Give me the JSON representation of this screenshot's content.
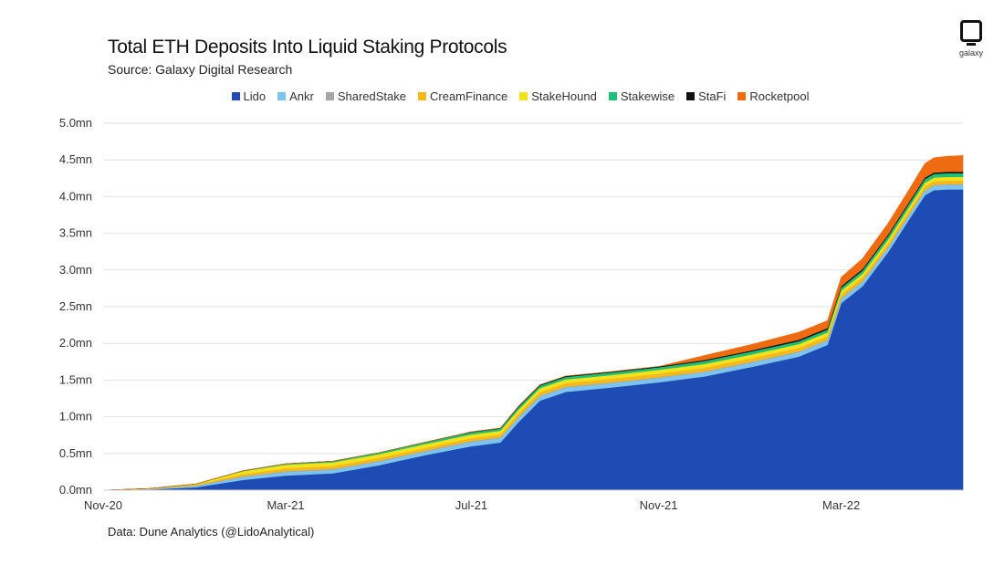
{
  "header": {
    "title": "Total ETH Deposits Into Liquid Staking Protocols",
    "subtitle": "Source: Galaxy Digital Research"
  },
  "logo": {
    "text": "galaxy",
    "icon": "galaxy-logo-icon"
  },
  "footnote": "Data: Dune Analytics (@LidoAnalytical)",
  "chart_data": {
    "type": "area",
    "stacked": true,
    "title": "Total ETH Deposits Into Liquid Staking Protocols",
    "subtitle": "Source: Galaxy Digital Research",
    "xlabel": "",
    "ylabel": "",
    "ylim": [
      0,
      5.0
    ],
    "y_unit": "mn",
    "yticks": [
      "0.0mn",
      "0.5mn",
      "1.0mn",
      "1.5mn",
      "2.0mn",
      "2.5mn",
      "3.0mn",
      "3.5mn",
      "4.0mn",
      "4.5mn",
      "5.0mn"
    ],
    "xticks": [
      "Nov-20",
      "Mar-21",
      "Jul-21",
      "Nov-21",
      "Mar-22"
    ],
    "grid": "horizontal",
    "legend_position": "top",
    "x": [
      "2020-11-01",
      "2020-12-01",
      "2021-01-01",
      "2021-02-01",
      "2021-03-01",
      "2021-04-01",
      "2021-05-01",
      "2021-06-01",
      "2021-07-01",
      "2021-07-20",
      "2021-08-01",
      "2021-08-15",
      "2021-09-01",
      "2021-10-01",
      "2021-11-01",
      "2021-12-01",
      "2022-01-01",
      "2022-02-01",
      "2022-02-20",
      "2022-03-01",
      "2022-03-15",
      "2022-04-01",
      "2022-04-15",
      "2022-04-25",
      "2022-05-01",
      "2022-05-10",
      "2022-05-20"
    ],
    "series": [
      {
        "name": "Lido",
        "color": "#1f4bb4",
        "values": [
          0.0,
          0.01,
          0.04,
          0.14,
          0.2,
          0.23,
          0.34,
          0.48,
          0.6,
          0.65,
          0.93,
          1.22,
          1.34,
          1.4,
          1.47,
          1.55,
          1.68,
          1.82,
          1.98,
          2.55,
          2.78,
          3.25,
          3.7,
          4.02,
          4.09,
          4.1,
          4.1
        ]
      },
      {
        "name": "Ankr",
        "color": "#7cc4ee",
        "values": [
          0.0,
          0.005,
          0.02,
          0.04,
          0.05,
          0.05,
          0.05,
          0.05,
          0.06,
          0.06,
          0.06,
          0.06,
          0.06,
          0.06,
          0.06,
          0.06,
          0.06,
          0.06,
          0.06,
          0.06,
          0.06,
          0.06,
          0.06,
          0.06,
          0.06,
          0.06,
          0.06
        ]
      },
      {
        "name": "SharedStake",
        "color": "#a6a6a6",
        "values": [
          0.0,
          0.002,
          0.005,
          0.01,
          0.01,
          0.01,
          0.01,
          0.01,
          0.01,
          0.01,
          0.01,
          0.01,
          0.01,
          0.01,
          0.01,
          0.01,
          0.01,
          0.01,
          0.01,
          0.01,
          0.01,
          0.01,
          0.01,
          0.01,
          0.01,
          0.01,
          0.01
        ]
      },
      {
        "name": "CreamFinance",
        "color": "#f5b91e",
        "values": [
          0.0,
          0.003,
          0.01,
          0.03,
          0.04,
          0.04,
          0.04,
          0.04,
          0.04,
          0.04,
          0.05,
          0.05,
          0.05,
          0.05,
          0.05,
          0.05,
          0.05,
          0.05,
          0.05,
          0.05,
          0.05,
          0.05,
          0.05,
          0.05,
          0.05,
          0.05,
          0.05
        ]
      },
      {
        "name": "StakeHound",
        "color": "#f2e21c",
        "values": [
          0.0,
          0.003,
          0.01,
          0.04,
          0.05,
          0.05,
          0.05,
          0.05,
          0.05,
          0.05,
          0.05,
          0.05,
          0.05,
          0.05,
          0.05,
          0.05,
          0.05,
          0.05,
          0.05,
          0.05,
          0.05,
          0.05,
          0.05,
          0.05,
          0.05,
          0.05,
          0.05
        ]
      },
      {
        "name": "Stakewise",
        "color": "#1fbf7a",
        "values": [
          0.0,
          0.0,
          0.0,
          0.005,
          0.01,
          0.015,
          0.02,
          0.025,
          0.03,
          0.03,
          0.035,
          0.035,
          0.035,
          0.035,
          0.035,
          0.04,
          0.04,
          0.04,
          0.04,
          0.04,
          0.045,
          0.05,
          0.05,
          0.05,
          0.05,
          0.05,
          0.05
        ]
      },
      {
        "name": "StaFi",
        "color": "#111111",
        "values": [
          0.0,
          0.0,
          0.0,
          0.0,
          0.0,
          0.0,
          0.0,
          0.0,
          0.005,
          0.005,
          0.01,
          0.01,
          0.01,
          0.01,
          0.01,
          0.015,
          0.015,
          0.02,
          0.02,
          0.02,
          0.02,
          0.02,
          0.02,
          0.02,
          0.02,
          0.02,
          0.02
        ]
      },
      {
        "name": "Rocketpool",
        "color": "#ef6b12",
        "values": [
          0.0,
          0.0,
          0.0,
          0.0,
          0.0,
          0.0,
          0.0,
          0.0,
          0.0,
          0.0,
          0.0,
          0.0,
          0.0,
          0.0,
          0.0,
          0.06,
          0.08,
          0.1,
          0.1,
          0.12,
          0.14,
          0.15,
          0.17,
          0.19,
          0.2,
          0.21,
          0.22
        ]
      }
    ]
  }
}
